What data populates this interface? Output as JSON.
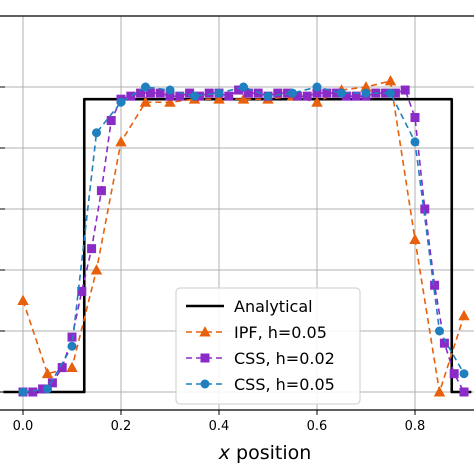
{
  "chart_data": {
    "type": "line",
    "title": "",
    "xlabel_prefix": "x",
    "xlabel_suffix": " position",
    "ylabel": "",
    "xlim": [
      -0.04,
      0.915
    ],
    "ylim": [
      -0.05,
      1.05
    ],
    "xticks": [
      0.0,
      0.2,
      0.4,
      0.6,
      0.8
    ],
    "xtick_labels": [
      "0.0",
      "0.2",
      "0.4",
      "0.6",
      "0.8"
    ],
    "yticks": [
      0.0,
      0.2,
      0.4,
      0.6,
      0.8,
      1.0
    ],
    "grid": true,
    "legend_position": "bottom-center",
    "series": [
      {
        "name": "Analytical",
        "color": "#000000",
        "style": "solid",
        "marker": "none",
        "x": [
          -0.04,
          0.125,
          0.125,
          0.875,
          0.875,
          0.915
        ],
        "y": [
          0.0,
          0.0,
          0.96,
          0.96,
          0.0,
          0.0
        ]
      },
      {
        "name": "IPF, h=0.05",
        "color": "#e8600c",
        "style": "dashed",
        "marker": "triangle",
        "x": [
          0.0,
          0.05,
          0.1,
          0.15,
          0.2,
          0.25,
          0.3,
          0.35,
          0.4,
          0.45,
          0.5,
          0.55,
          0.6,
          0.65,
          0.7,
          0.75,
          0.8,
          0.85,
          0.9
        ],
        "y": [
          0.3,
          0.06,
          0.08,
          0.4,
          0.82,
          0.95,
          0.95,
          0.96,
          0.96,
          0.96,
          0.96,
          0.97,
          0.95,
          0.99,
          1.0,
          1.02,
          0.5,
          0.0,
          0.25
        ]
      },
      {
        "name": "CSS, h=0.02",
        "color": "#8a2bc8",
        "style": "dashed",
        "marker": "square",
        "x": [
          0.0,
          0.02,
          0.04,
          0.06,
          0.08,
          0.1,
          0.12,
          0.14,
          0.16,
          0.18,
          0.2,
          0.22,
          0.24,
          0.26,
          0.28,
          0.3,
          0.32,
          0.34,
          0.36,
          0.38,
          0.4,
          0.42,
          0.44,
          0.46,
          0.48,
          0.5,
          0.52,
          0.54,
          0.56,
          0.58,
          0.6,
          0.62,
          0.64,
          0.66,
          0.68,
          0.7,
          0.72,
          0.74,
          0.76,
          0.78,
          0.8,
          0.82,
          0.84,
          0.86,
          0.88,
          0.9
        ],
        "y": [
          0.0,
          0.0,
          0.01,
          0.03,
          0.08,
          0.18,
          0.33,
          0.47,
          0.66,
          0.89,
          0.96,
          0.97,
          0.98,
          0.98,
          0.98,
          0.97,
          0.97,
          0.98,
          0.97,
          0.98,
          0.98,
          0.97,
          0.99,
          0.98,
          0.98,
          0.97,
          0.98,
          0.98,
          0.97,
          0.97,
          0.98,
          0.98,
          0.98,
          0.97,
          0.97,
          0.97,
          0.98,
          0.98,
          0.98,
          0.99,
          0.9,
          0.6,
          0.35,
          0.16,
          0.06,
          0.0
        ]
      },
      {
        "name": "CSS, h=0.05",
        "color": "#1f7fbf",
        "style": "dashed",
        "marker": "circle",
        "x": [
          0.0,
          0.05,
          0.1,
          0.15,
          0.2,
          0.25,
          0.3,
          0.35,
          0.4,
          0.45,
          0.5,
          0.55,
          0.6,
          0.65,
          0.7,
          0.75,
          0.8,
          0.85,
          0.9
        ],
        "y": [
          0.0,
          0.01,
          0.15,
          0.85,
          0.95,
          1.0,
          0.99,
          0.97,
          0.98,
          1.0,
          0.97,
          0.98,
          1.0,
          0.98,
          0.98,
          0.98,
          0.82,
          0.2,
          0.06
        ]
      }
    ]
  }
}
